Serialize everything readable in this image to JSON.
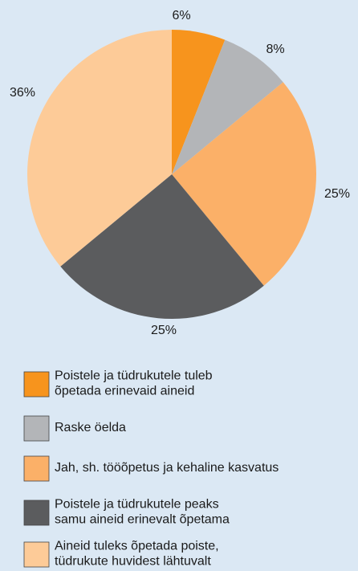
{
  "chart_data": {
    "type": "pie",
    "categories": [
      [
        "Poistele ja tüdrukutele tuleb",
        "õpetada erinevaid aineid"
      ],
      [
        "Raske öelda"
      ],
      [
        "Jah, sh. tööõpetus ja kehaline kasvatus"
      ],
      [
        "Poistele ja tüdrukutele peaks",
        "samu aineid erinevalt õpetama"
      ],
      [
        "Aineid tuleks õpetada poiste,",
        "tüdrukute huvidest lähtuvalt"
      ]
    ],
    "values": [
      6,
      8,
      25,
      25,
      36
    ],
    "value_labels": [
      "6%",
      "8%",
      "25%",
      "25%",
      "36%"
    ],
    "colors": [
      "#f7941d",
      "#b3b5b8",
      "#fbb068",
      "#5b5c5e",
      "#fdcb98"
    ]
  }
}
